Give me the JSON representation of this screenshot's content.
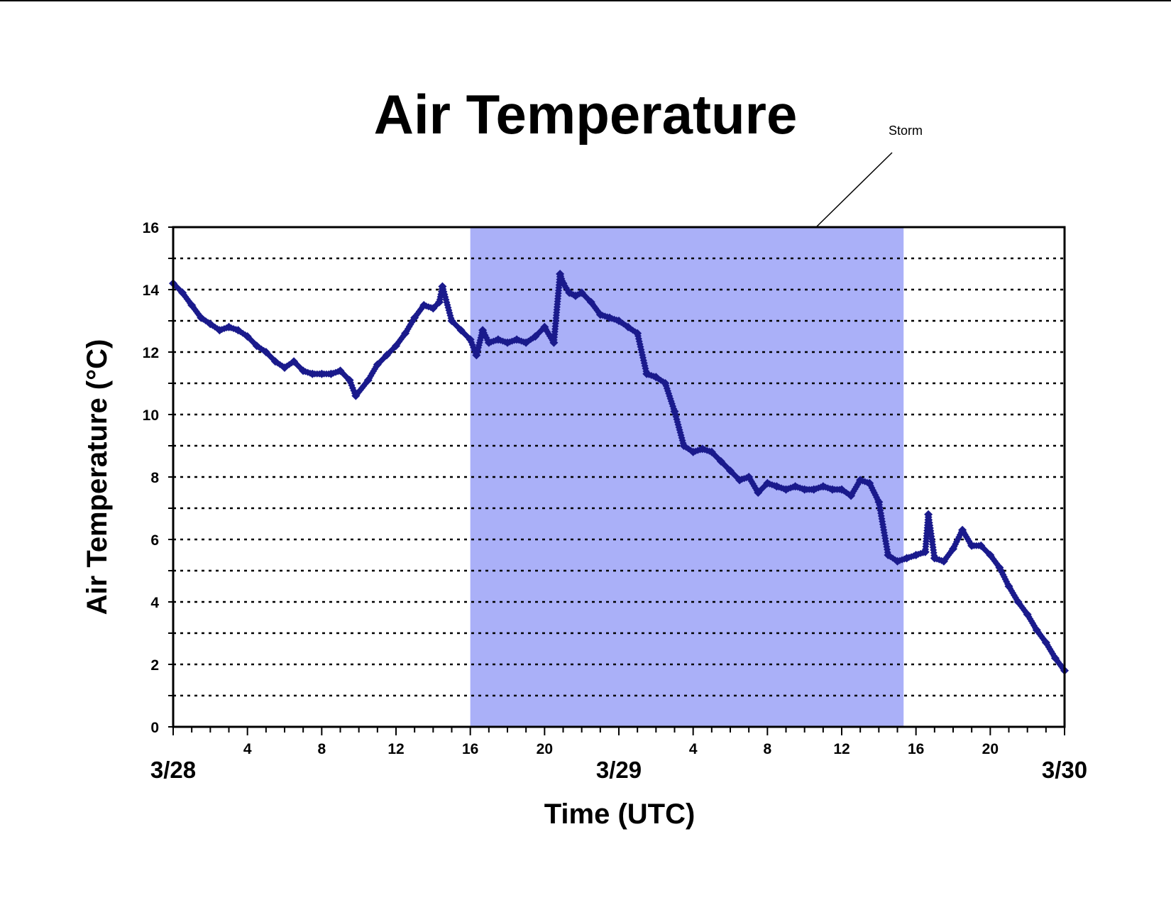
{
  "chart_data": {
    "type": "scatter",
    "title": "Air Temperature",
    "xlabel": "Time (UTC)",
    "ylabel": "Air Temperature (°C)",
    "xlim": [
      "3/28 00:00",
      "3/30 00:00"
    ],
    "ylim": [
      0,
      16
    ],
    "y_ticks": [
      "0",
      "2",
      "4",
      "6",
      "8",
      "10",
      "12",
      "14",
      "16"
    ],
    "grid": {
      "horizontal": "dotted",
      "step": 1
    },
    "x_hour_ticks": [
      {
        "x": "3/28 04:00",
        "label": "4"
      },
      {
        "x": "3/28 08:00",
        "label": "8"
      },
      {
        "x": "3/28 12:00",
        "label": "12"
      },
      {
        "x": "3/28 16:00",
        "label": "16"
      },
      {
        "x": "3/28 20:00",
        "label": "20"
      },
      {
        "x": "3/29 04:00",
        "label": "4"
      },
      {
        "x": "3/29 08:00",
        "label": "8"
      },
      {
        "x": "3/29 12:00",
        "label": "12"
      },
      {
        "x": "3/29 16:00",
        "label": "16"
      },
      {
        "x": "3/29 20:00",
        "label": "20"
      }
    ],
    "x_date_labels": [
      {
        "x": "3/28 00:00",
        "label": "3/28"
      },
      {
        "x": "3/29 00:00",
        "label": "3/29"
      },
      {
        "x": "3/30 00:00",
        "label": "3/30"
      }
    ],
    "shaded_region": {
      "label": "Storm",
      "start": "3/28 16:00",
      "end": "3/29 15:20",
      "color": "#aab0f8"
    },
    "colors": {
      "series": "#1a1a8c"
    },
    "series": [
      {
        "x": [
          "3/28 00:00",
          "3/28 00:30",
          "3/28 01:00",
          "3/28 01:30",
          "3/28 02:00",
          "3/28 02:30",
          "3/28 03:00",
          "3/28 03:30",
          "3/28 04:00",
          "3/28 04:30",
          "3/28 05:00",
          "3/28 05:30",
          "3/28 06:00",
          "3/28 06:30",
          "3/28 07:00",
          "3/28 07:30",
          "3/28 08:00",
          "3/28 08:30",
          "3/28 09:00",
          "3/28 09:30",
          "3/28 09:50",
          "3/28 10:30",
          "3/28 11:00",
          "3/28 11:30",
          "3/28 12:00",
          "3/28 12:30",
          "3/28 13:00",
          "3/28 13:30",
          "3/28 14:00",
          "3/28 14:20",
          "3/28 14:30",
          "3/28 15:00",
          "3/28 15:30",
          "3/28 16:00",
          "3/28 16:20",
          "3/28 16:40",
          "3/28 17:00",
          "3/28 17:30",
          "3/28 18:00",
          "3/28 18:30",
          "3/28 19:00",
          "3/28 19:30",
          "3/28 20:00",
          "3/28 20:30",
          "3/28 20:50",
          "3/28 21:00",
          "3/28 21:20",
          "3/28 21:40",
          "3/28 22:00",
          "3/28 22:30",
          "3/28 23:00",
          "3/28 23:30",
          "3/29 00:00",
          "3/29 00:30",
          "3/29 01:00",
          "3/29 01:30",
          "3/29 02:00",
          "3/29 02:30",
          "3/29 03:00",
          "3/29 03:30",
          "3/29 04:00",
          "3/29 04:30",
          "3/29 05:00",
          "3/29 05:30",
          "3/29 06:00",
          "3/29 06:30",
          "3/29 07:00",
          "3/29 07:30",
          "3/29 08:00",
          "3/29 08:30",
          "3/29 09:00",
          "3/29 09:30",
          "3/29 10:00",
          "3/29 10:30",
          "3/29 11:00",
          "3/29 11:30",
          "3/29 12:00",
          "3/29 12:30",
          "3/29 13:00",
          "3/29 13:30",
          "3/29 14:00",
          "3/29 14:30",
          "3/29 15:00",
          "3/29 15:30",
          "3/29 16:00",
          "3/29 16:30",
          "3/29 16:40",
          "3/29 17:00",
          "3/29 17:30",
          "3/29 18:00",
          "3/29 18:30",
          "3/29 19:00",
          "3/29 19:30",
          "3/29 20:00",
          "3/29 20:30",
          "3/29 21:00",
          "3/29 21:30",
          "3/29 22:00",
          "3/29 22:30",
          "3/29 23:00",
          "3/29 23:30",
          "3/30 00:00"
        ],
        "values": [
          14.2,
          13.9,
          13.5,
          13.1,
          12.9,
          12.7,
          12.8,
          12.7,
          12.5,
          12.2,
          12.0,
          11.7,
          11.5,
          11.7,
          11.4,
          11.3,
          11.3,
          11.3,
          11.4,
          11.1,
          10.6,
          11.1,
          11.6,
          11.9,
          12.2,
          12.6,
          13.1,
          13.5,
          13.4,
          13.6,
          14.1,
          13.0,
          12.7,
          12.4,
          11.9,
          12.7,
          12.3,
          12.4,
          12.3,
          12.4,
          12.3,
          12.5,
          12.8,
          12.3,
          14.5,
          14.2,
          13.9,
          13.8,
          13.9,
          13.6,
          13.2,
          13.1,
          13.0,
          12.8,
          12.6,
          11.3,
          11.2,
          11.0,
          10.1,
          9.0,
          8.8,
          8.9,
          8.8,
          8.5,
          8.2,
          7.9,
          8.0,
          7.5,
          7.8,
          7.7,
          7.6,
          7.7,
          7.6,
          7.6,
          7.7,
          7.6,
          7.6,
          7.4,
          7.9,
          7.8,
          7.2,
          5.5,
          5.3,
          5.4,
          5.5,
          5.6,
          6.8,
          5.4,
          5.3,
          5.7,
          6.3,
          5.8,
          5.8,
          5.5,
          5.1,
          4.5,
          4.0,
          3.6,
          3.1,
          2.7,
          2.2,
          1.8
        ]
      }
    ]
  }
}
